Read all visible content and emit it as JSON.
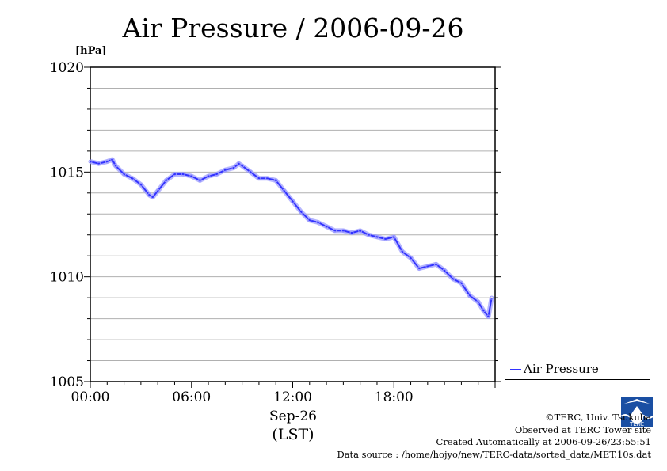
{
  "title": "Air Pressure / 2006-09-26",
  "legend": {
    "label": "Air Pressure"
  },
  "credits": {
    "line1": "©TERC, Univ. Tsukuba",
    "line2": "Observed at TERC Tower site",
    "line3": "Created Automatically at 2006-09-26/23:55:51",
    "line4": "Data source : /home/hojyo/new/TERC-data/sorted_data/MET.10s.dat"
  },
  "logo_text": "TERC",
  "colors": {
    "series": "#3333ff",
    "series_light": "#9999ff",
    "grid": "#b0b0b0"
  },
  "chart_data": {
    "type": "line",
    "title": "Air Pressure / 2006-09-26",
    "ylabel": "[hPa]",
    "xlabel_date": "Sep-26",
    "xlabel_unit": "(LST)",
    "x_ticks": [
      "00:00",
      "06:00",
      "12:00",
      "18:00"
    ],
    "y_ticks": [
      1005,
      1010,
      1015,
      1020
    ],
    "ylim": [
      1005,
      1020
    ],
    "xlim_hours": [
      0,
      24
    ],
    "grid": true,
    "legend_position": "right",
    "series": [
      {
        "name": "Air Pressure",
        "x_hours": [
          0,
          0.5,
          1.0,
          1.3,
          1.5,
          2.0,
          2.5,
          3.0,
          3.5,
          3.7,
          4.0,
          4.5,
          5.0,
          5.5,
          6.0,
          6.5,
          7.0,
          7.5,
          8.0,
          8.5,
          8.8,
          9.0,
          9.5,
          10.0,
          10.5,
          11.0,
          11.5,
          12.0,
          12.5,
          13.0,
          13.5,
          14.0,
          14.5,
          15.0,
          15.5,
          16.0,
          16.5,
          17.0,
          17.5,
          18.0,
          18.5,
          19.0,
          19.5,
          20.0,
          20.5,
          21.0,
          21.5,
          22.0,
          22.5,
          23.0,
          23.3,
          23.6,
          23.8
        ],
        "values": [
          1015.5,
          1015.4,
          1015.5,
          1015.6,
          1015.3,
          1014.9,
          1014.7,
          1014.4,
          1013.9,
          1013.8,
          1014.1,
          1014.6,
          1014.9,
          1014.9,
          1014.8,
          1014.6,
          1014.8,
          1014.9,
          1015.1,
          1015.2,
          1015.4,
          1015.3,
          1015.0,
          1014.7,
          1014.7,
          1014.6,
          1014.1,
          1013.6,
          1013.1,
          1012.7,
          1012.6,
          1012.4,
          1012.2,
          1012.2,
          1012.1,
          1012.2,
          1012.0,
          1011.9,
          1011.8,
          1011.9,
          1011.2,
          1010.9,
          1010.4,
          1010.5,
          1010.6,
          1010.3,
          1009.9,
          1009.7,
          1009.1,
          1008.8,
          1008.4,
          1008.1,
          1009.0
        ]
      }
    ]
  }
}
